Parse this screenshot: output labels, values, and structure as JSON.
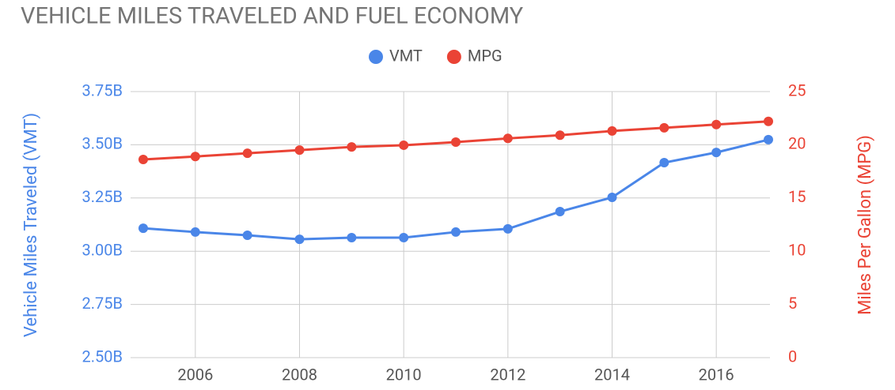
{
  "chart_data": {
    "type": "line",
    "title": "VEHICLE MILES TRAVELED AND FUEL ECONOMY",
    "x": [
      2005,
      2006,
      2007,
      2008,
      2009,
      2010,
      2011,
      2012,
      2013,
      2014,
      2015,
      2016,
      2017
    ],
    "xlim": [
      2005,
      2017
    ],
    "xticks": [
      2006,
      2008,
      2010,
      2012,
      2014,
      2016
    ],
    "ylabel": "Vehicle Miles Traveled (VMT)",
    "y2label": "Miles Per Gallon (MPG)",
    "ylim": [
      2.5,
      3.75
    ],
    "yticks": [
      {
        "value": 2.5,
        "label": "2.50B"
      },
      {
        "value": 2.75,
        "label": "2.75B"
      },
      {
        "value": 3.0,
        "label": "3.00B"
      },
      {
        "value": 3.25,
        "label": "3.25B"
      },
      {
        "value": 3.5,
        "label": "3.50B"
      },
      {
        "value": 3.75,
        "label": "3.75B"
      }
    ],
    "y2lim": [
      0,
      25
    ],
    "y2ticks": [
      0,
      5,
      10,
      15,
      20,
      25
    ],
    "grid": true,
    "legend": "top",
    "series": [
      {
        "name": "VMT",
        "color": "#4a86e8",
        "values": [
          3.108,
          3.09,
          3.075,
          3.056,
          3.064,
          3.064,
          3.09,
          3.105,
          3.186,
          3.253,
          3.416,
          3.464,
          3.524
        ]
      },
      {
        "name": "MPG",
        "color": "#ea4335",
        "axis": "y2",
        "values": [
          18.62,
          18.9,
          19.2,
          19.5,
          19.8,
          19.96,
          20.25,
          20.6,
          20.9,
          21.3,
          21.6,
          21.9,
          22.2
        ]
      }
    ]
  }
}
